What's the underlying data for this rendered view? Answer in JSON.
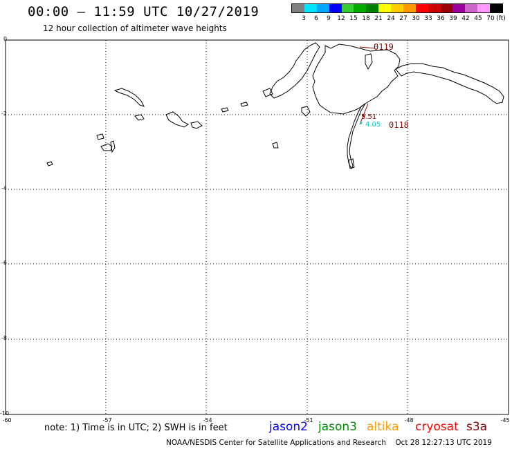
{
  "header": {
    "title": "00:00 — 11:59 UTC 10/27/2019",
    "subtitle": "12 hour collection of altimeter wave heights"
  },
  "legend": {
    "unit": "(ft)",
    "labels": [
      "3",
      "6",
      "9",
      "12",
      "15",
      "18",
      "21",
      "24",
      "27",
      "30",
      "33",
      "36",
      "39",
      "42",
      "45",
      "70"
    ],
    "colors": [
      "#808080",
      "#00e5ff",
      "#00aaff",
      "#0000ff",
      "#33cc33",
      "#00aa00",
      "#008000",
      "#ffff00",
      "#ffcc00",
      "#ff9900",
      "#ff0000",
      "#cc0000",
      "#990000",
      "#990099",
      "#cc66cc",
      "#ff99ff",
      "#000000"
    ]
  },
  "axes": {
    "y_ticks": [
      "0",
      "-2",
      "-4",
      "-6",
      "-8",
      "-10"
    ],
    "x_ticks": [
      "-60",
      "-57",
      "-54",
      "-51",
      "-48",
      "-45"
    ]
  },
  "passes": [
    {
      "id": "0119",
      "color": "#8b0000"
    },
    {
      "id": "0118",
      "color": "#8b0000"
    }
  ],
  "swh_values": [
    {
      "value": "5.51",
      "color": "#8b0000"
    },
    {
      "value": "4.05",
      "color": "#00cccc"
    }
  ],
  "footer": {
    "note": "note:  1) Time is in UTC;  2) SWH is in feet",
    "satellites": [
      {
        "name": "jason2",
        "color": "#0000ff"
      },
      {
        "name": "jason3",
        "color": "#008800"
      },
      {
        "name": "altika",
        "color": "#ff9900"
      },
      {
        "name": "cryosat",
        "color": "#ff0000"
      },
      {
        "name": "s3a",
        "color": "#8b0000"
      }
    ],
    "credit": "NOAA/NESDIS Center for Satellite Applications and Research    Oct 28 12:27:13 UTC 2019"
  }
}
